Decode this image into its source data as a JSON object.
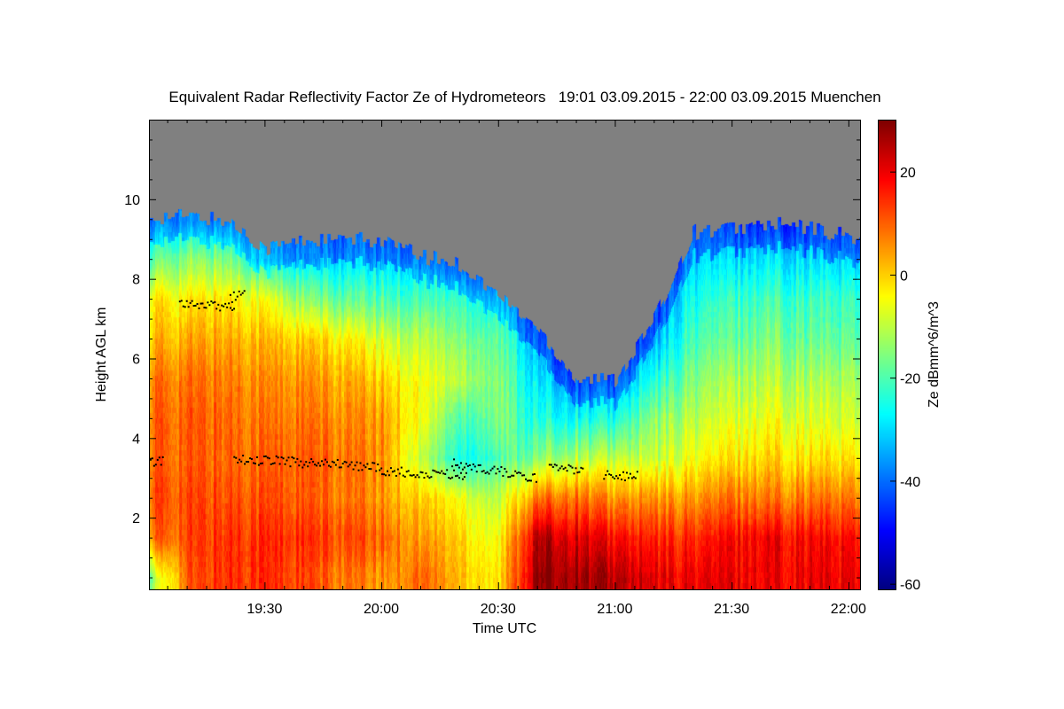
{
  "chart_data": {
    "type": "heatmap",
    "title": "Equivalent Radar Reflectivity Factor Ze of Hydrometeors   19:01 03.09.2015 - 22:00 03.09.2015 Muenchen",
    "xlabel": "Time UTC",
    "ylabel": "Height AGL km",
    "colorbar_label": "Ze dBmm^6/m^3",
    "colormap": "jet",
    "no_data_color": "#808080",
    "xlim_minutes_after_19": [
      0.3,
      183
    ],
    "ylim": [
      0.2,
      12
    ],
    "clim": [
      -61,
      30
    ],
    "x_ticks": [
      "19:30",
      "20:00",
      "20:30",
      "21:00",
      "21:30",
      "22:00"
    ],
    "x_tick_minutes": [
      30,
      60,
      90,
      120,
      150,
      180
    ],
    "y_ticks": [
      "2",
      "4",
      "6",
      "8",
      "10"
    ],
    "y_tick_values": [
      2,
      4,
      6,
      8,
      10
    ],
    "colorbar_ticks": [
      "20",
      "0",
      "-20",
      "-40",
      "-60"
    ],
    "colorbar_tick_values": [
      20,
      0,
      -20,
      -40,
      -60
    ],
    "grid_times_minutes": [
      0,
      10,
      20,
      30,
      40,
      50,
      60,
      70,
      80,
      90,
      100,
      110,
      120,
      130,
      140,
      150,
      160,
      170,
      180
    ],
    "grid_heights_km": [
      0.5,
      1.5,
      2.5,
      3.5,
      4.5,
      5.5,
      6.5,
      7.5,
      8.5,
      9.5
    ],
    "echo_top_km": [
      9.6,
      9.6,
      9.5,
      8.8,
      9.0,
      9.0,
      9.0,
      8.6,
      8.4,
      7.6,
      6.8,
      5.5,
      5.5,
      7.0,
      9.2,
      9.3,
      9.4,
      9.3,
      9.1
    ],
    "ze_dbz": [
      [
        -15,
        8,
        12,
        10,
        10,
        8,
        2,
        -2,
        -18,
        -30
      ],
      [
        10,
        12,
        12,
        10,
        10,
        8,
        3,
        -3,
        -15,
        -30
      ],
      [
        15,
        15,
        12,
        10,
        10,
        8,
        4,
        -2,
        -15,
        -30
      ],
      [
        15,
        15,
        12,
        10,
        8,
        6,
        2,
        -5,
        -25,
        -32
      ],
      [
        12,
        14,
        10,
        10,
        8,
        5,
        0,
        -15,
        -30,
        -35
      ],
      [
        8,
        12,
        8,
        8,
        6,
        3,
        -3,
        -18,
        -30,
        -35
      ],
      [
        5,
        10,
        5,
        6,
        5,
        0,
        -8,
        -20,
        -30,
        -35
      ],
      [
        10,
        5,
        0,
        -10,
        -5,
        -5,
        -10,
        -20,
        -30,
        -35
      ],
      [
        2,
        0,
        -5,
        -25,
        -20,
        -10,
        -15,
        -22,
        -35,
        -38
      ],
      [
        -2,
        -5,
        -10,
        -20,
        -15,
        -15,
        -18,
        -25,
        -38,
        -40
      ],
      [
        28,
        25,
        8,
        -15,
        -25,
        -30,
        -35,
        -38,
        -40,
        -40
      ],
      [
        28,
        22,
        10,
        -10,
        -25,
        -35,
        -40,
        -40,
        -40,
        -40
      ],
      [
        25,
        18,
        5,
        -10,
        -25,
        -35,
        -40,
        -40,
        -40,
        -40
      ],
      [
        20,
        15,
        5,
        -10,
        -15,
        -25,
        -35,
        -38,
        -40,
        -40
      ],
      [
        20,
        15,
        5,
        -5,
        -10,
        -15,
        -20,
        -25,
        -30,
        -35
      ],
      [
        20,
        18,
        8,
        -2,
        -8,
        -12,
        -18,
        -22,
        -30,
        -38
      ],
      [
        20,
        20,
        8,
        0,
        -5,
        -10,
        -15,
        -20,
        -28,
        -38
      ],
      [
        20,
        18,
        8,
        -2,
        -8,
        -12,
        -18,
        -22,
        -30,
        -38
      ],
      [
        20,
        18,
        8,
        -2,
        -8,
        -12,
        -18,
        -22,
        -30,
        -38
      ]
    ],
    "black_marker_segments": [
      {
        "t": [
          0.5,
          4
        ],
        "h": [
          3.45,
          3.45
        ]
      },
      {
        "t": [
          8,
          22
        ],
        "h": [
          7.4,
          7.3
        ]
      },
      {
        "t": [
          21,
          25
        ],
        "h": [
          7.55,
          7.65
        ]
      },
      {
        "t": [
          22,
          60
        ],
        "h": [
          3.5,
          3.3
        ]
      },
      {
        "t": [
          60,
          82
        ],
        "h": [
          3.2,
          3.1
        ]
      },
      {
        "t": [
          78,
          100
        ],
        "h": [
          3.4,
          3.0
        ]
      },
      {
        "t": [
          103,
          112
        ],
        "h": [
          3.3,
          3.2
        ]
      },
      {
        "t": [
          117,
          126
        ],
        "h": [
          3.1,
          3.05
        ]
      }
    ]
  }
}
